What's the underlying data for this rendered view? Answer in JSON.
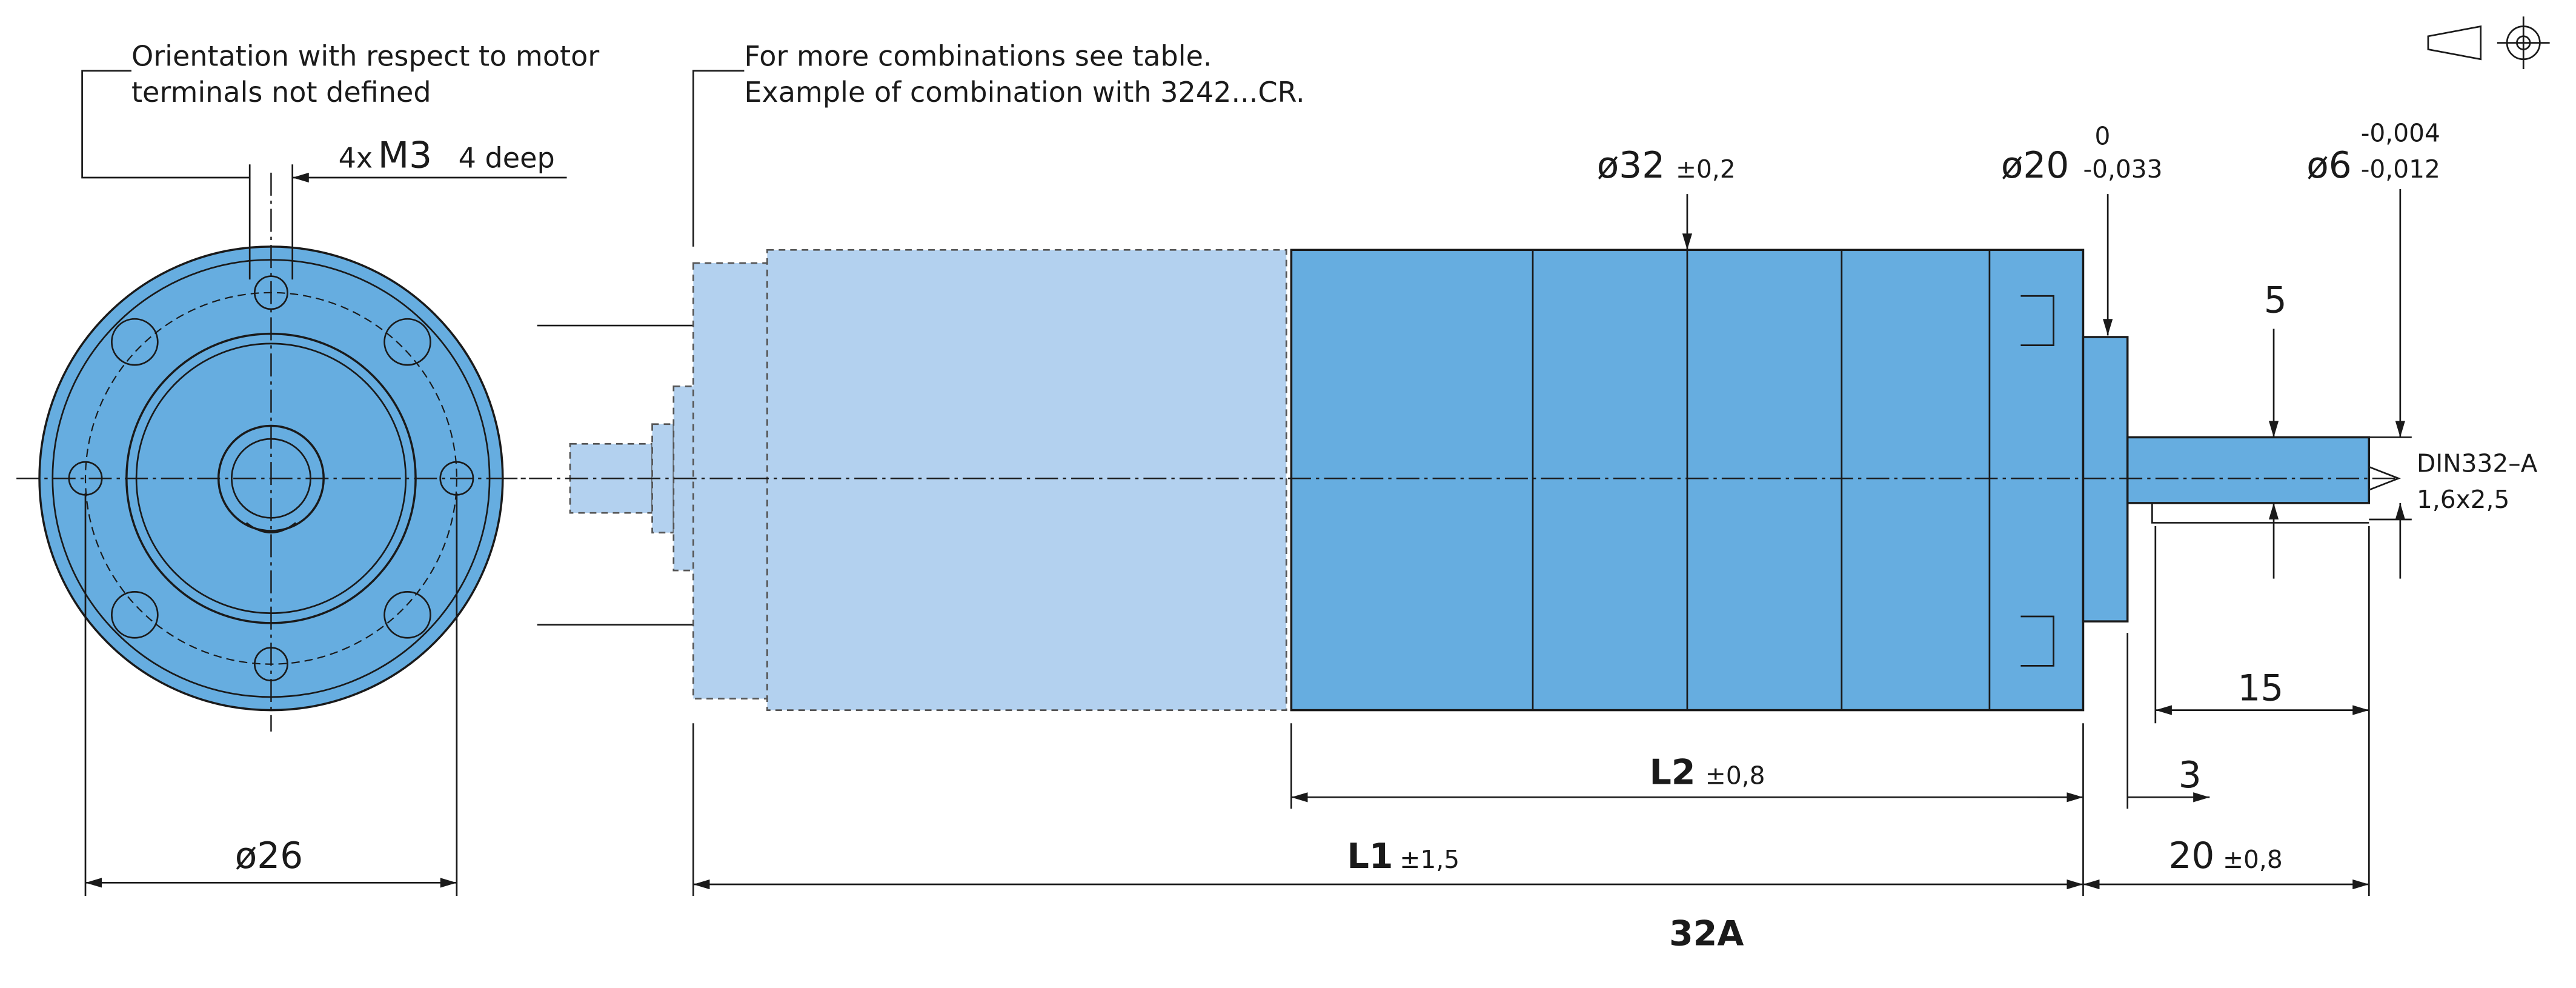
{
  "notes": {
    "orientation": [
      "Orientation with respect to motor",
      "terminals not defined"
    ],
    "combinations": [
      "For more combinations see table.",
      "Example of combination with 3242...CR."
    ]
  },
  "dimensions": {
    "thread": {
      "count": "4x",
      "size": "M3",
      "depth": "4 deep"
    },
    "d32": {
      "value": "ø32",
      "tol": "±0,2"
    },
    "d20": {
      "value": "ø20",
      "upper": "0",
      "lower": "-0,033"
    },
    "d6": {
      "value": "ø6",
      "upper": "-0,004",
      "lower": "-0,012"
    },
    "d26": "ø26",
    "key": "5",
    "center_hole": [
      "DIN332–A",
      "1,6x2,5"
    ],
    "len15": "15",
    "len3": "3",
    "len20": {
      "value": "20",
      "tol": "±0,8"
    },
    "L2": {
      "value": "L2",
      "tol": "±0,8"
    },
    "L1": {
      "value": "L1",
      "tol": "±1,5"
    }
  },
  "label": "32A"
}
